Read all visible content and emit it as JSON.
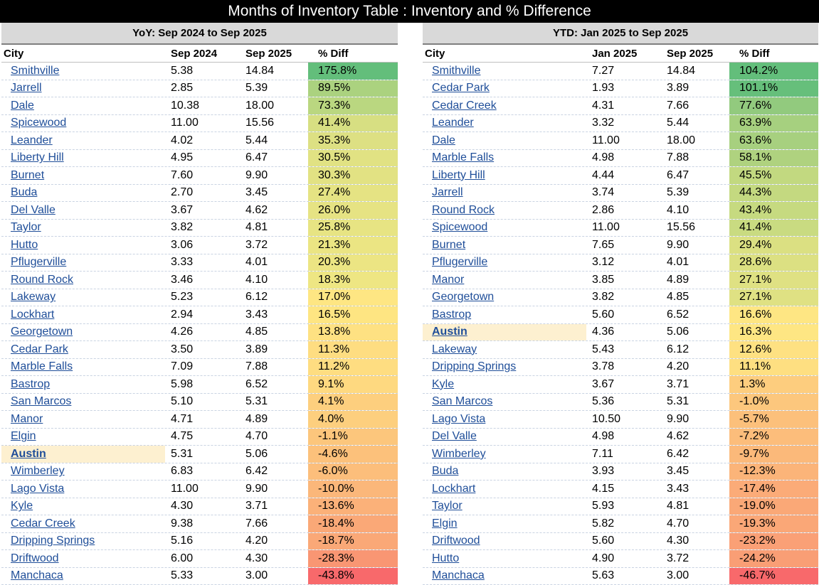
{
  "title": "Months of Inventory Table : Inventory and % Difference",
  "yoy": {
    "heading": "YoY: Sep 2024 to Sep 2025",
    "columns": [
      "City",
      "Sep 2024",
      "Sep 2025",
      "% Diff"
    ],
    "rows": [
      {
        "city": "Smithville",
        "a": "5.38",
        "b": "14.84",
        "diff": "175.8%",
        "color": "#63be7b"
      },
      {
        "city": "Jarrell",
        "a": "2.85",
        "b": "5.39",
        "diff": "89.5%",
        "color": "#abd27f"
      },
      {
        "city": "Dale",
        "a": "10.38",
        "b": "18.00",
        "diff": "73.3%",
        "color": "#bad780"
      },
      {
        "city": "Spicewood",
        "a": "11.00",
        "b": "15.56",
        "diff": "41.4%",
        "color": "#d7df82"
      },
      {
        "city": "Leander",
        "a": "4.02",
        "b": "5.44",
        "diff": "35.3%",
        "color": "#dde083"
      },
      {
        "city": "Liberty Hill",
        "a": "4.95",
        "b": "6.47",
        "diff": "30.5%",
        "color": "#e1e283"
      },
      {
        "city": "Burnet",
        "a": "7.60",
        "b": "9.90",
        "diff": "30.3%",
        "color": "#e2e283"
      },
      {
        "city": "Buda",
        "a": "2.70",
        "b": "3.45",
        "diff": "27.4%",
        "color": "#e5e383"
      },
      {
        "city": "Del Valle",
        "a": "3.67",
        "b": "4.62",
        "diff": "26.0%",
        "color": "#e6e383"
      },
      {
        "city": "Taylor",
        "a": "3.82",
        "b": "4.81",
        "diff": "25.8%",
        "color": "#e7e483"
      },
      {
        "city": "Hutto",
        "a": "3.06",
        "b": "3.72",
        "diff": "21.3%",
        "color": "#ebe583"
      },
      {
        "city": "Pflugerville",
        "a": "3.33",
        "b": "4.01",
        "diff": "20.3%",
        "color": "#ece583"
      },
      {
        "city": "Round Rock",
        "a": "3.46",
        "b": "4.10",
        "diff": "18.3%",
        "color": "#eee683"
      },
      {
        "city": "Lakeway",
        "a": "5.23",
        "b": "6.12",
        "diff": "17.0%",
        "color": "#fee683"
      },
      {
        "city": "Lockhart",
        "a": "2.94",
        "b": "3.43",
        "diff": "16.5%",
        "color": "#fee582"
      },
      {
        "city": "Georgetown",
        "a": "4.26",
        "b": "4.85",
        "diff": "13.8%",
        "color": "#fee182"
      },
      {
        "city": "Cedar Park",
        "a": "3.50",
        "b": "3.89",
        "diff": "11.3%",
        "color": "#fedd81"
      },
      {
        "city": "Marble Falls",
        "a": "7.09",
        "b": "7.88",
        "diff": "11.2%",
        "color": "#fedd81"
      },
      {
        "city": "Bastrop",
        "a": "5.98",
        "b": "6.52",
        "diff": "9.1%",
        "color": "#fed980"
      },
      {
        "city": "San Marcos",
        "a": "5.10",
        "b": "5.31",
        "diff": "4.1%",
        "color": "#fdcf7e"
      },
      {
        "city": "Manor",
        "a": "4.71",
        "b": "4.89",
        "diff": "4.0%",
        "color": "#fdcf7e"
      },
      {
        "city": "Elgin",
        "a": "4.75",
        "b": "4.70",
        "diff": "-1.1%",
        "color": "#fcc67c"
      },
      {
        "city": "Austin",
        "a": "5.31",
        "b": "5.06",
        "diff": "-4.6%",
        "color": "#fcc17b",
        "highlight": true
      },
      {
        "city": "Wimberley",
        "a": "6.83",
        "b": "6.42",
        "diff": "-6.0%",
        "color": "#fcbe7b"
      },
      {
        "city": "Lago Vista",
        "a": "11.00",
        "b": "9.90",
        "diff": "-10.0%",
        "color": "#fbb77a"
      },
      {
        "city": "Kyle",
        "a": "4.30",
        "b": "3.71",
        "diff": "-13.6%",
        "color": "#fbb179"
      },
      {
        "city": "Cedar Creek",
        "a": "9.38",
        "b": "7.66",
        "diff": "-18.4%",
        "color": "#faa877"
      },
      {
        "city": "Dripping Springs",
        "a": "5.16",
        "b": "4.20",
        "diff": "-18.7%",
        "color": "#faa877"
      },
      {
        "city": "Driftwood",
        "a": "6.00",
        "b": "4.30",
        "diff": "-28.3%",
        "color": "#f99673"
      },
      {
        "city": "Manchaca",
        "a": "5.33",
        "b": "3.00",
        "diff": "-43.8%",
        "color": "#f8696b"
      }
    ]
  },
  "ytd": {
    "heading": "YTD: Jan 2025 to Sep 2025",
    "columns": [
      "City",
      "Jan 2025",
      "Sep 2025",
      "% Diff"
    ],
    "rows": [
      {
        "city": "Smithville",
        "a": "7.27",
        "b": "14.84",
        "diff": "104.2%",
        "color": "#63be7b"
      },
      {
        "city": "Cedar Park",
        "a": "1.93",
        "b": "3.89",
        "diff": "101.1%",
        "color": "#66bf7b"
      },
      {
        "city": "Cedar Creek",
        "a": "4.31",
        "b": "7.66",
        "diff": "77.6%",
        "color": "#92ca7e"
      },
      {
        "city": "Leander",
        "a": "3.32",
        "b": "5.44",
        "diff": "63.9%",
        "color": "#a6d07f"
      },
      {
        "city": "Dale",
        "a": "11.00",
        "b": "18.00",
        "diff": "63.6%",
        "color": "#a7d07f"
      },
      {
        "city": "Marble Falls",
        "a": "4.98",
        "b": "7.88",
        "diff": "58.1%",
        "color": "#afd27f"
      },
      {
        "city": "Liberty Hill",
        "a": "4.44",
        "b": "6.47",
        "diff": "45.5%",
        "color": "#c2d980"
      },
      {
        "city": "Jarrell",
        "a": "3.74",
        "b": "5.39",
        "diff": "44.3%",
        "color": "#c4d980"
      },
      {
        "city": "Round Rock",
        "a": "2.86",
        "b": "4.10",
        "diff": "43.4%",
        "color": "#c6da80"
      },
      {
        "city": "Spicewood",
        "a": "11.00",
        "b": "15.56",
        "diff": "41.4%",
        "color": "#c9db81"
      },
      {
        "city": "Burnet",
        "a": "7.65",
        "b": "9.90",
        "diff": "29.4%",
        "color": "#dbe082"
      },
      {
        "city": "Pflugerville",
        "a": "3.12",
        "b": "4.01",
        "diff": "28.6%",
        "color": "#dce082"
      },
      {
        "city": "Manor",
        "a": "3.85",
        "b": "4.89",
        "diff": "27.1%",
        "color": "#dfe183"
      },
      {
        "city": "Georgetown",
        "a": "3.82",
        "b": "4.85",
        "diff": "27.1%",
        "color": "#dfe183"
      },
      {
        "city": "Bastrop",
        "a": "5.60",
        "b": "6.52",
        "diff": "16.6%",
        "color": "#fee683"
      },
      {
        "city": "Austin",
        "a": "4.36",
        "b": "5.06",
        "diff": "16.3%",
        "color": "#fee683",
        "highlight": true
      },
      {
        "city": "Lakeway",
        "a": "5.43",
        "b": "6.12",
        "diff": "12.6%",
        "color": "#fee182"
      },
      {
        "city": "Dripping Springs",
        "a": "3.78",
        "b": "4.20",
        "diff": "11.1%",
        "color": "#fedf81"
      },
      {
        "city": "Kyle",
        "a": "3.67",
        "b": "3.71",
        "diff": "1.3%",
        "color": "#fdcd7e"
      },
      {
        "city": "San Marcos",
        "a": "5.36",
        "b": "5.31",
        "diff": "-1.0%",
        "color": "#fcc77d"
      },
      {
        "city": "Lago Vista",
        "a": "10.50",
        "b": "9.90",
        "diff": "-5.7%",
        "color": "#fcc07b"
      },
      {
        "city": "Del Valle",
        "a": "4.98",
        "b": "4.62",
        "diff": "-7.2%",
        "color": "#fcbd7b"
      },
      {
        "city": "Wimberley",
        "a": "7.11",
        "b": "6.42",
        "diff": "-9.7%",
        "color": "#fbb97a"
      },
      {
        "city": "Buda",
        "a": "3.93",
        "b": "3.45",
        "diff": "-12.3%",
        "color": "#fbb479"
      },
      {
        "city": "Lockhart",
        "a": "4.15",
        "b": "3.43",
        "diff": "-17.4%",
        "color": "#fbab78"
      },
      {
        "city": "Taylor",
        "a": "5.93",
        "b": "4.81",
        "diff": "-19.0%",
        "color": "#faa877"
      },
      {
        "city": "Elgin",
        "a": "5.82",
        "b": "4.70",
        "diff": "-19.3%",
        "color": "#faa777"
      },
      {
        "city": "Driftwood",
        "a": "5.60",
        "b": "4.30",
        "diff": "-23.2%",
        "color": "#faa076"
      },
      {
        "city": "Hutto",
        "a": "4.90",
        "b": "3.72",
        "diff": "-24.2%",
        "color": "#f99e75"
      },
      {
        "city": "Manchaca",
        "a": "5.63",
        "b": "3.00",
        "diff": "-46.7%",
        "color": "#f8696b"
      }
    ]
  }
}
